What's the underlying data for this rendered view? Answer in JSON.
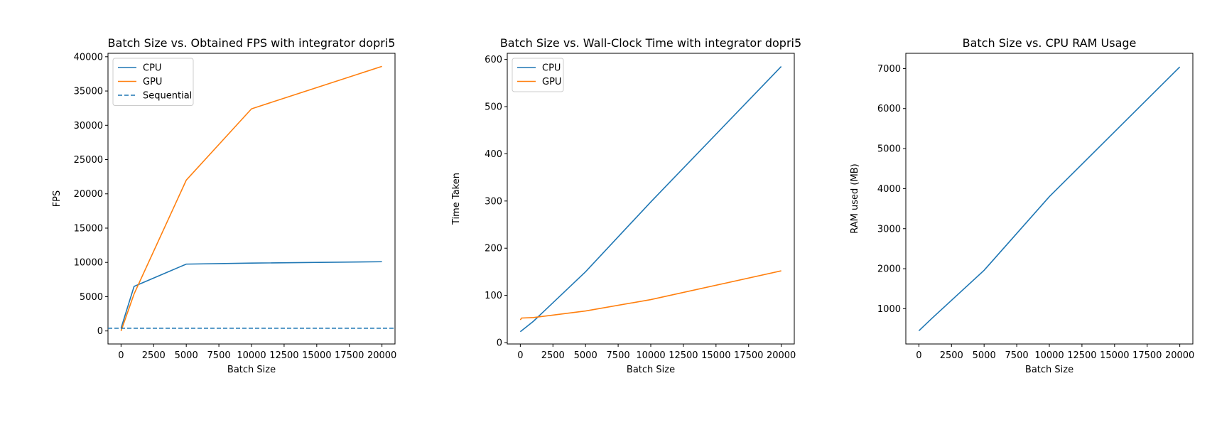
{
  "colors": {
    "cpu": "#1f77b4",
    "gpu": "#ff7f0e"
  },
  "chart_data": [
    {
      "type": "line",
      "title": "Batch Size vs. Obtained FPS with integrator dopri5",
      "xlabel": "Batch Size",
      "ylabel": "FPS",
      "xlim": [
        -1000,
        21000
      ],
      "ylim": [
        -1900,
        40500
      ],
      "xticks": [
        0,
        2500,
        5000,
        7500,
        10000,
        12500,
        15000,
        17500,
        20000
      ],
      "yticks": [
        0,
        5000,
        10000,
        15000,
        20000,
        25000,
        30000,
        35000,
        40000
      ],
      "legend_loc": "upper left",
      "grid": false,
      "series": [
        {
          "name": "CPU",
          "color": "#1f77b4",
          "dash": "solid",
          "x": [
            1,
            1000,
            5000,
            10000,
            20000
          ],
          "y": [
            400,
            6500,
            9750,
            9900,
            10100
          ]
        },
        {
          "name": "GPU",
          "color": "#ff7f0e",
          "dash": "solid",
          "x": [
            1,
            1000,
            5000,
            10000,
            20000
          ],
          "y": [
            0,
            5400,
            22000,
            32400,
            38600
          ]
        },
        {
          "name": "Sequential",
          "color": "#1f77b4",
          "dash": "dashed",
          "hline": 400
        }
      ]
    },
    {
      "type": "line",
      "title": "Batch Size vs. Wall-Clock Time with integrator dopri5",
      "xlabel": "Batch Size",
      "ylabel": "Time Taken",
      "xlim": [
        -1000,
        21000
      ],
      "ylim": [
        -3,
        613
      ],
      "xticks": [
        0,
        2500,
        5000,
        7500,
        10000,
        12500,
        15000,
        17500,
        20000
      ],
      "yticks": [
        0,
        100,
        200,
        300,
        400,
        500,
        600
      ],
      "legend_loc": "upper left",
      "grid": false,
      "series": [
        {
          "name": "CPU",
          "color": "#1f77b4",
          "dash": "solid",
          "x": [
            1,
            1000,
            5000,
            10000,
            20000
          ],
          "y": [
            23,
            45,
            150,
            298,
            585
          ]
        },
        {
          "name": "GPU",
          "color": "#ff7f0e",
          "dash": "solid",
          "x": [
            1,
            100,
            1000,
            5000,
            10000,
            20000
          ],
          "y": [
            48,
            52,
            53,
            67,
            91,
            152
          ]
        }
      ]
    },
    {
      "type": "line",
      "title": "Batch Size vs. CPU RAM Usage",
      "xlabel": "Batch Size",
      "ylabel": "RAM used (MB)",
      "xlim": [
        -1000,
        21000
      ],
      "ylim": [
        120,
        7380
      ],
      "xticks": [
        0,
        2500,
        5000,
        7500,
        10000,
        12500,
        15000,
        17500,
        20000
      ],
      "yticks": [
        1000,
        2000,
        3000,
        4000,
        5000,
        6000,
        7000
      ],
      "legend_loc": "",
      "grid": false,
      "series": [
        {
          "color": "#1f77b4",
          "dash": "solid",
          "x": [
            1,
            1000,
            5000,
            10000,
            20000
          ],
          "y": [
            450,
            760,
            1960,
            3800,
            7040
          ]
        }
      ]
    }
  ]
}
